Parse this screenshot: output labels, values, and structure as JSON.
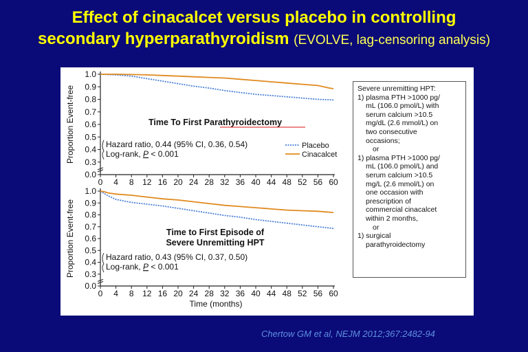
{
  "slide": {
    "title_line1": "Effect of cinacalcet versus placebo in controlling",
    "title_line2_main": "secondary hyperparathyroidism",
    "title_line2_note": "(EVOLVE, lag-censoring analysis)",
    "citation": "Chertow GM et al, NEJM 2012;367:2482-94"
  },
  "colors": {
    "background": "#0a0a78",
    "title": "#ffff00",
    "placebo": "#4a7fd6",
    "cinacalcet": "#e08a1e",
    "citation": "#5f8fe0"
  },
  "definition_box": {
    "lines": [
      "Severe unremitting HPT:",
      "1) plasma PTH >1000 pg/",
      "mL (106.0 pmol/L) with",
      "serum calcium >10.5",
      "mg/dL (2.6 mmol/L) on",
      "two consecutive",
      "occasions;",
      "or",
      "1) plasma PTH >1000 pg/",
      "mL (106.0 pmol/L) and",
      "serum calcium >10.5",
      "mg/L (2.6 mmol/L) on",
      "one occasion with",
      "prescription of",
      "commercial cinacalcet",
      "within 2 months,",
      "or",
      "1) surgical",
      "parathyroidectomy"
    ]
  },
  "chart_data": [
    {
      "type": "line",
      "title": "Time To First Parathyroidectomy",
      "ylabel": "Proportion Event-free",
      "xlabel": "",
      "xlim": [
        0,
        60
      ],
      "ylim": [
        0,
        1.0
      ],
      "x_ticks": [
        "0",
        "4",
        "8",
        "12",
        "16",
        "20",
        "24",
        "28",
        "32",
        "36",
        "40",
        "44",
        "48",
        "52",
        "56",
        "60"
      ],
      "y_ticks": [
        "0.0",
        "0.3",
        "0.4",
        "0.5",
        "0.6",
        "0.7",
        "0.8",
        "0.9",
        "1.0"
      ],
      "y_axis_break": true,
      "annotation_hr": "Hazard ratio, 0.44 (95% CI, 0.36, 0.54)",
      "annotation_logrank_prefix": "Log-rank, ",
      "annotation_logrank_p": "P",
      "annotation_logrank_suffix": " < 0.001",
      "legend_position": "right",
      "series": [
        {
          "name": "Placebo",
          "style": "dotted",
          "x": [
            0,
            4,
            8,
            12,
            16,
            20,
            24,
            28,
            32,
            36,
            40,
            44,
            48,
            52,
            56,
            58.5,
            60
          ],
          "y": [
            1.0,
            0.995,
            0.985,
            0.965,
            0.945,
            0.925,
            0.905,
            0.89,
            0.87,
            0.855,
            0.84,
            0.83,
            0.82,
            0.81,
            0.8,
            0.797,
            0.795
          ]
        },
        {
          "name": "Cinacalcet",
          "style": "solid",
          "x": [
            0,
            4,
            8,
            12,
            16,
            20,
            24,
            28,
            32,
            36,
            40,
            44,
            48,
            52,
            56,
            59,
            60
          ],
          "y": [
            1.0,
            1.0,
            0.998,
            0.995,
            0.99,
            0.985,
            0.98,
            0.975,
            0.97,
            0.96,
            0.95,
            0.94,
            0.93,
            0.92,
            0.91,
            0.89,
            0.885
          ]
        }
      ]
    },
    {
      "type": "line",
      "title_line1": "Time to First Episode of",
      "title_line2": "Severe Unremitting HPT",
      "ylabel": "Proportion Event-free",
      "xlabel": "Time (months)",
      "xlim": [
        0,
        60
      ],
      "ylim": [
        0,
        1.0
      ],
      "x_ticks": [
        "0",
        "4",
        "8",
        "12",
        "16",
        "20",
        "24",
        "28",
        "32",
        "36",
        "40",
        "44",
        "48",
        "52",
        "56",
        "60"
      ],
      "y_ticks": [
        "0.0",
        "0.3",
        "0.4",
        "0.5",
        "0.6",
        "0.7",
        "0.8",
        "0.9",
        "1.0"
      ],
      "y_axis_break": true,
      "annotation_hr": "Hazard ratio, 0.43 (95% CI, 0.37, 0.50)",
      "annotation_logrank_prefix": "Log-rank, ",
      "annotation_logrank_p": "P",
      "annotation_logrank_suffix": " < 0.001",
      "series": [
        {
          "name": "Placebo",
          "style": "dotted",
          "x": [
            0,
            1,
            2,
            4,
            8,
            12,
            16,
            20,
            24,
            28,
            32,
            36,
            40,
            44,
            48,
            52,
            56,
            60
          ],
          "y": [
            1.0,
            0.98,
            0.96,
            0.93,
            0.905,
            0.89,
            0.875,
            0.855,
            0.835,
            0.815,
            0.795,
            0.78,
            0.76,
            0.745,
            0.73,
            0.715,
            0.7,
            0.685
          ]
        },
        {
          "name": "Cinacalcet",
          "style": "solid",
          "x": [
            0,
            1,
            2,
            4,
            8,
            12,
            16,
            20,
            24,
            28,
            32,
            36,
            40,
            44,
            48,
            52,
            56,
            60
          ],
          "y": [
            1.0,
            0.995,
            0.985,
            0.975,
            0.965,
            0.95,
            0.935,
            0.925,
            0.91,
            0.895,
            0.88,
            0.87,
            0.86,
            0.85,
            0.84,
            0.835,
            0.83,
            0.82
          ]
        }
      ]
    }
  ]
}
